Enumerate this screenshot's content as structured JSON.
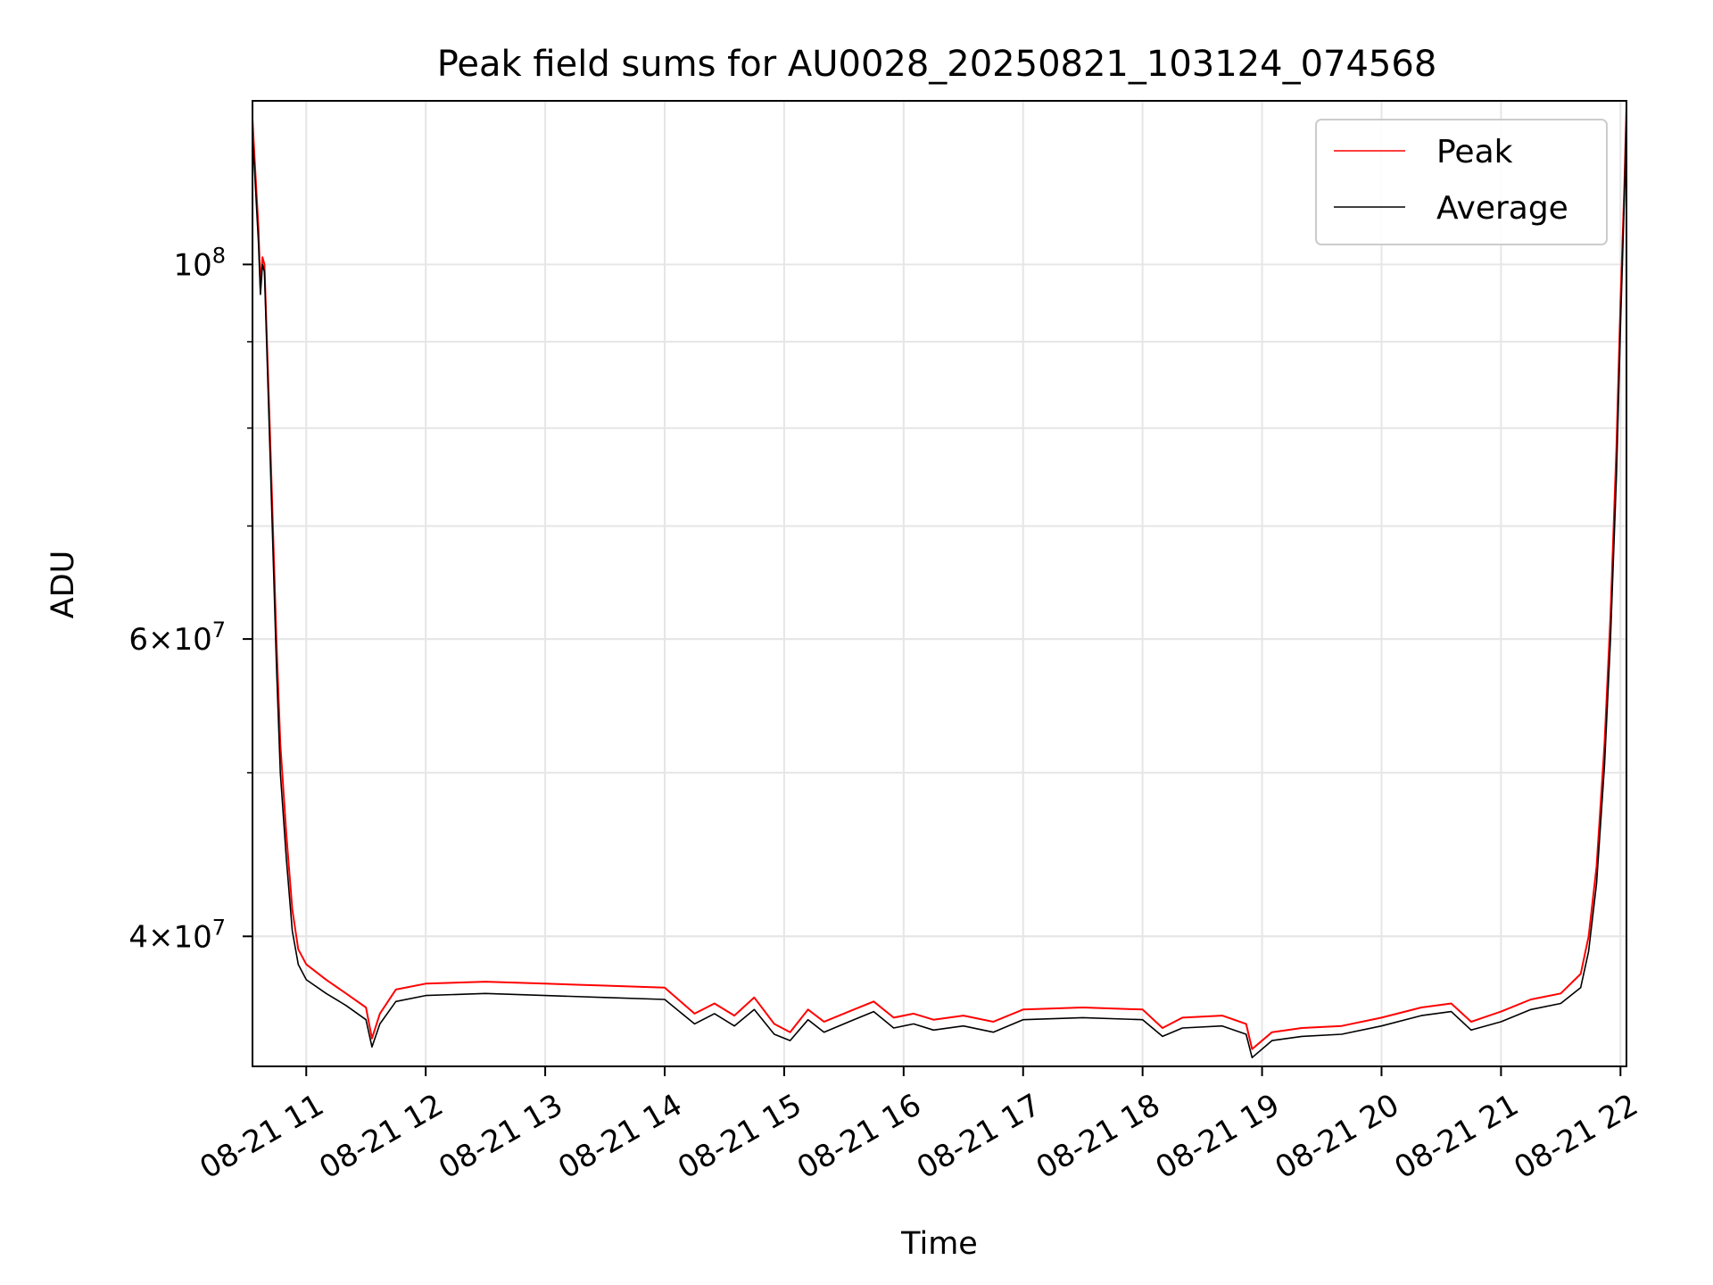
{
  "chart_data": {
    "type": "line",
    "title": "Peak field sums for AU0028_20250821_103124_074568",
    "xlabel": "Time",
    "ylabel": "ADU",
    "x_axis_type": "time",
    "xlim": [
      "2025-08-21T10:33",
      "2025-08-21T22:03"
    ],
    "x_ticks": [
      {
        "value": "2025-08-21T11:00",
        "label": "08-21 11"
      },
      {
        "value": "2025-08-21T12:00",
        "label": "08-21 12"
      },
      {
        "value": "2025-08-21T13:00",
        "label": "08-21 13"
      },
      {
        "value": "2025-08-21T14:00",
        "label": "08-21 14"
      },
      {
        "value": "2025-08-21T15:00",
        "label": "08-21 15"
      },
      {
        "value": "2025-08-21T16:00",
        "label": "08-21 16"
      },
      {
        "value": "2025-08-21T17:00",
        "label": "08-21 17"
      },
      {
        "value": "2025-08-21T18:00",
        "label": "08-21 18"
      },
      {
        "value": "2025-08-21T19:00",
        "label": "08-21 19"
      },
      {
        "value": "2025-08-21T20:00",
        "label": "08-21 20"
      },
      {
        "value": "2025-08-21T21:00",
        "label": "08-21 21"
      },
      {
        "value": "2025-08-21T22:00",
        "label": "08-21 22"
      }
    ],
    "y_scale": "log",
    "ylim": [
      33500000,
      125000000
    ],
    "y_major_ticks": [
      {
        "value": 100000000,
        "base": "10",
        "exp": "8",
        "mantissa": ""
      },
      {
        "value": 60000000,
        "base": "10",
        "exp": "7",
        "mantissa": "6"
      },
      {
        "value": 40000000,
        "base": "10",
        "exp": "7",
        "mantissa": "4"
      }
    ],
    "y_minor_ticks": [
      40000000,
      50000000,
      60000000,
      70000000,
      80000000,
      90000000
    ],
    "grid": true,
    "legend_position": "upper-right",
    "series": [
      {
        "name": "Peak",
        "color": "#ff0000",
        "points": [
          [
            "2025-08-21T10:33",
            122000000
          ],
          [
            "2025-08-21T10:34",
            116000000
          ],
          [
            "2025-08-21T10:36",
            105000000
          ],
          [
            "2025-08-21T10:37",
            97000000
          ],
          [
            "2025-08-21T10:38",
            101000000
          ],
          [
            "2025-08-21T10:39",
            100000000
          ],
          [
            "2025-08-21T10:42",
            78000000
          ],
          [
            "2025-08-21T10:45",
            60000000
          ],
          [
            "2025-08-21T10:47",
            52000000
          ],
          [
            "2025-08-21T10:50",
            46000000
          ],
          [
            "2025-08-21T10:53",
            41500000
          ],
          [
            "2025-08-21T10:56",
            39300000
          ],
          [
            "2025-08-21T11:00",
            38500000
          ],
          [
            "2025-08-21T11:10",
            37700000
          ],
          [
            "2025-08-21T11:20",
            37000000
          ],
          [
            "2025-08-21T11:30",
            36300000
          ],
          [
            "2025-08-21T11:33",
            34800000
          ],
          [
            "2025-08-21T11:37",
            36000000
          ],
          [
            "2025-08-21T11:45",
            37200000
          ],
          [
            "2025-08-21T12:00",
            37500000
          ],
          [
            "2025-08-21T12:30",
            37600000
          ],
          [
            "2025-08-21T13:00",
            37500000
          ],
          [
            "2025-08-21T13:30",
            37400000
          ],
          [
            "2025-08-21T14:00",
            37300000
          ],
          [
            "2025-08-21T14:15",
            36000000
          ],
          [
            "2025-08-21T14:25",
            36500000
          ],
          [
            "2025-08-21T14:35",
            35900000
          ],
          [
            "2025-08-21T14:45",
            36800000
          ],
          [
            "2025-08-21T14:55",
            35500000
          ],
          [
            "2025-08-21T15:03",
            35100000
          ],
          [
            "2025-08-21T15:12",
            36200000
          ],
          [
            "2025-08-21T15:20",
            35600000
          ],
          [
            "2025-08-21T15:35",
            36200000
          ],
          [
            "2025-08-21T15:45",
            36600000
          ],
          [
            "2025-08-21T15:55",
            35800000
          ],
          [
            "2025-08-21T16:05",
            36000000
          ],
          [
            "2025-08-21T16:15",
            35700000
          ],
          [
            "2025-08-21T16:30",
            35900000
          ],
          [
            "2025-08-21T16:45",
            35600000
          ],
          [
            "2025-08-21T17:00",
            36200000
          ],
          [
            "2025-08-21T17:30",
            36300000
          ],
          [
            "2025-08-21T18:00",
            36200000
          ],
          [
            "2025-08-21T18:10",
            35300000
          ],
          [
            "2025-08-21T18:20",
            35800000
          ],
          [
            "2025-08-21T18:40",
            35900000
          ],
          [
            "2025-08-21T18:52",
            35500000
          ],
          [
            "2025-08-21T18:55",
            34300000
          ],
          [
            "2025-08-21T19:05",
            35100000
          ],
          [
            "2025-08-21T19:20",
            35300000
          ],
          [
            "2025-08-21T19:40",
            35400000
          ],
          [
            "2025-08-21T20:00",
            35800000
          ],
          [
            "2025-08-21T20:20",
            36300000
          ],
          [
            "2025-08-21T20:35",
            36500000
          ],
          [
            "2025-08-21T20:45",
            35600000
          ],
          [
            "2025-08-21T21:00",
            36100000
          ],
          [
            "2025-08-21T21:15",
            36700000
          ],
          [
            "2025-08-21T21:30",
            37000000
          ],
          [
            "2025-08-21T21:40",
            38000000
          ],
          [
            "2025-08-21T21:44",
            40000000
          ],
          [
            "2025-08-21T21:48",
            44000000
          ],
          [
            "2025-08-21T21:52",
            52000000
          ],
          [
            "2025-08-21T21:55",
            62000000
          ],
          [
            "2025-08-21T21:58",
            78000000
          ],
          [
            "2025-08-21T22:00",
            95000000
          ],
          [
            "2025-08-21T22:02",
            112000000
          ],
          [
            "2025-08-21T22:03",
            124000000
          ]
        ]
      },
      {
        "name": "Average",
        "color": "#000000",
        "points": [
          [
            "2025-08-21T10:33",
            119000000
          ],
          [
            "2025-08-21T10:34",
            114000000
          ],
          [
            "2025-08-21T10:36",
            103000000
          ],
          [
            "2025-08-21T10:37",
            96000000
          ],
          [
            "2025-08-21T10:38",
            100000000
          ],
          [
            "2025-08-21T10:39",
            99000000
          ],
          [
            "2025-08-21T10:42",
            76000000
          ],
          [
            "2025-08-21T10:45",
            58000000
          ],
          [
            "2025-08-21T10:47",
            50000000
          ],
          [
            "2025-08-21T10:50",
            44500000
          ],
          [
            "2025-08-21T10:53",
            40300000
          ],
          [
            "2025-08-21T10:56",
            38500000
          ],
          [
            "2025-08-21T11:00",
            37700000
          ],
          [
            "2025-08-21T11:10",
            37000000
          ],
          [
            "2025-08-21T11:20",
            36400000
          ],
          [
            "2025-08-21T11:30",
            35700000
          ],
          [
            "2025-08-21T11:33",
            34400000
          ],
          [
            "2025-08-21T11:37",
            35500000
          ],
          [
            "2025-08-21T11:45",
            36600000
          ],
          [
            "2025-08-21T12:00",
            36900000
          ],
          [
            "2025-08-21T12:30",
            37000000
          ],
          [
            "2025-08-21T13:00",
            36900000
          ],
          [
            "2025-08-21T13:30",
            36800000
          ],
          [
            "2025-08-21T14:00",
            36700000
          ],
          [
            "2025-08-21T14:15",
            35500000
          ],
          [
            "2025-08-21T14:25",
            36000000
          ],
          [
            "2025-08-21T14:35",
            35400000
          ],
          [
            "2025-08-21T14:45",
            36200000
          ],
          [
            "2025-08-21T14:55",
            35000000
          ],
          [
            "2025-08-21T15:03",
            34700000
          ],
          [
            "2025-08-21T15:12",
            35700000
          ],
          [
            "2025-08-21T15:20",
            35100000
          ],
          [
            "2025-08-21T15:35",
            35700000
          ],
          [
            "2025-08-21T15:45",
            36100000
          ],
          [
            "2025-08-21T15:55",
            35300000
          ],
          [
            "2025-08-21T16:05",
            35500000
          ],
          [
            "2025-08-21T16:15",
            35200000
          ],
          [
            "2025-08-21T16:30",
            35400000
          ],
          [
            "2025-08-21T16:45",
            35100000
          ],
          [
            "2025-08-21T17:00",
            35700000
          ],
          [
            "2025-08-21T17:30",
            35800000
          ],
          [
            "2025-08-21T18:00",
            35700000
          ],
          [
            "2025-08-21T18:10",
            34900000
          ],
          [
            "2025-08-21T18:20",
            35300000
          ],
          [
            "2025-08-21T18:40",
            35400000
          ],
          [
            "2025-08-21T18:52",
            35000000
          ],
          [
            "2025-08-21T18:55",
            33900000
          ],
          [
            "2025-08-21T19:05",
            34700000
          ],
          [
            "2025-08-21T19:20",
            34900000
          ],
          [
            "2025-08-21T19:40",
            35000000
          ],
          [
            "2025-08-21T20:00",
            35400000
          ],
          [
            "2025-08-21T20:20",
            35900000
          ],
          [
            "2025-08-21T20:35",
            36100000
          ],
          [
            "2025-08-21T20:45",
            35200000
          ],
          [
            "2025-08-21T21:00",
            35600000
          ],
          [
            "2025-08-21T21:15",
            36200000
          ],
          [
            "2025-08-21T21:30",
            36500000
          ],
          [
            "2025-08-21T21:40",
            37300000
          ],
          [
            "2025-08-21T21:44",
            39200000
          ],
          [
            "2025-08-21T21:48",
            43000000
          ],
          [
            "2025-08-21T21:52",
            50500000
          ],
          [
            "2025-08-21T21:55",
            60000000
          ],
          [
            "2025-08-21T21:58",
            75000000
          ],
          [
            "2025-08-21T22:00",
            92000000
          ],
          [
            "2025-08-21T22:02",
            110000000
          ],
          [
            "2025-08-21T22:03",
            123000000
          ]
        ]
      }
    ]
  }
}
